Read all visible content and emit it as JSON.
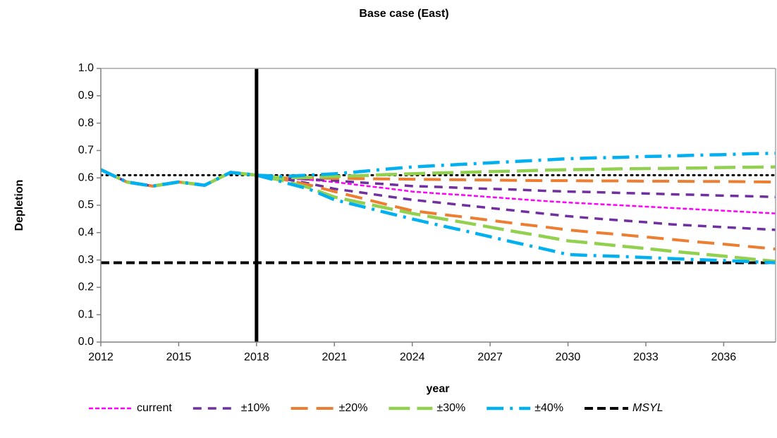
{
  "chart_data": {
    "type": "line",
    "title": "Base case (East)",
    "x_label": "year",
    "y_label": "Depletion",
    "x": [
      2012,
      2013,
      2014,
      2015,
      2016,
      2017,
      2018,
      2019,
      2020,
      2021,
      2022,
      2023,
      2024,
      2025,
      2026,
      2027,
      2028,
      2029,
      2030,
      2031,
      2032,
      2033,
      2034,
      2035,
      2036,
      2037,
      2038
    ],
    "xlim": [
      2012,
      2038
    ],
    "xticks": [
      2012,
      2015,
      2018,
      2021,
      2024,
      2027,
      2030,
      2033,
      2036
    ],
    "ylim": [
      0,
      1
    ],
    "yticks": [
      {
        "value": 0,
        "label": "0.0"
      },
      0.1,
      0.2,
      0.3,
      0.4,
      0.5,
      0.6,
      0.7,
      0.8,
      0.9,
      {
        "value": 1,
        "label": "1.0"
      }
    ],
    "grid": false,
    "legend": "bottom",
    "series": [
      {
        "name": "current",
        "color": "#ff00ff",
        "dash": "6,3",
        "width": 2.5,
        "values": [
          0.63,
          0.585,
          0.57,
          0.585,
          0.573,
          0.62,
          0.61,
          0.6,
          0.593,
          0.585,
          0.573,
          0.562,
          0.55,
          0.543,
          0.537,
          0.53,
          0.523,
          0.516,
          0.51,
          0.505,
          0.5,
          0.495,
          0.49,
          0.485,
          0.48,
          0.475,
          0.47
        ]
      },
      {
        "name": "±10%",
        "color": "#7030a0",
        "dash": "12,9",
        "width": 3.5,
        "values": [
          0.63,
          0.585,
          0.57,
          0.585,
          0.573,
          0.62,
          0.61,
          0.6,
          0.595,
          0.59,
          0.583,
          0.577,
          0.57,
          0.567,
          0.563,
          0.56,
          0.557,
          0.553,
          0.55,
          0.548,
          0.545,
          0.543,
          0.54,
          0.538,
          0.535,
          0.533,
          0.53
        ],
        "values_lower": [
          0.63,
          0.585,
          0.57,
          0.585,
          0.573,
          0.62,
          0.61,
          0.597,
          0.58,
          0.56,
          0.547,
          0.533,
          0.52,
          0.51,
          0.5,
          0.49,
          0.48,
          0.47,
          0.46,
          0.452,
          0.445,
          0.438,
          0.43,
          0.425,
          0.42,
          0.415,
          0.41
        ]
      },
      {
        "name": "±20%",
        "color": "#ed7d31",
        "dash": "24,12",
        "width": 4,
        "values": [
          0.63,
          0.585,
          0.57,
          0.585,
          0.573,
          0.62,
          0.61,
          0.6,
          0.6,
          0.598,
          0.597,
          0.596,
          0.595,
          0.594,
          0.593,
          0.592,
          0.591,
          0.59,
          0.59,
          0.589,
          0.589,
          0.588,
          0.588,
          0.587,
          0.587,
          0.586,
          0.585
        ],
        "values_lower": [
          0.63,
          0.585,
          0.57,
          0.585,
          0.573,
          0.62,
          0.61,
          0.595,
          0.575,
          0.55,
          0.527,
          0.503,
          0.48,
          0.468,
          0.457,
          0.445,
          0.433,
          0.422,
          0.41,
          0.401,
          0.393,
          0.384,
          0.375,
          0.366,
          0.358,
          0.349,
          0.34
        ]
      },
      {
        "name": "±30%",
        "color": "#92d050",
        "dash": "30,10",
        "width": 4.5,
        "values": [
          0.63,
          0.585,
          0.57,
          0.585,
          0.573,
          0.62,
          0.61,
          0.6,
          0.602,
          0.605,
          0.608,
          0.612,
          0.615,
          0.618,
          0.62,
          0.623,
          0.625,
          0.628,
          0.63,
          0.631,
          0.633,
          0.634,
          0.635,
          0.636,
          0.638,
          0.639,
          0.64
        ],
        "values_lower": [
          0.63,
          0.585,
          0.57,
          0.585,
          0.573,
          0.62,
          0.61,
          0.59,
          0.565,
          0.53,
          0.51,
          0.49,
          0.47,
          0.453,
          0.437,
          0.42,
          0.403,
          0.387,
          0.37,
          0.361,
          0.351,
          0.342,
          0.332,
          0.323,
          0.314,
          0.304,
          0.295
        ]
      },
      {
        "name": "±40%",
        "color": "#00b0f0",
        "dash": "24,9,4,9",
        "width": 4.5,
        "values": [
          0.63,
          0.585,
          0.57,
          0.585,
          0.573,
          0.62,
          0.61,
          0.605,
          0.61,
          0.615,
          0.623,
          0.632,
          0.64,
          0.645,
          0.65,
          0.655,
          0.66,
          0.665,
          0.67,
          0.673,
          0.675,
          0.678,
          0.68,
          0.683,
          0.685,
          0.688,
          0.69
        ],
        "values_lower": [
          0.63,
          0.585,
          0.57,
          0.585,
          0.573,
          0.62,
          0.61,
          0.585,
          0.56,
          0.52,
          0.497,
          0.473,
          0.45,
          0.428,
          0.407,
          0.385,
          0.363,
          0.342,
          0.32,
          0.316,
          0.313,
          0.309,
          0.305,
          0.301,
          0.298,
          0.294,
          0.29
        ]
      }
    ],
    "hlines": [
      {
        "value": 0.61,
        "color": "#000000",
        "dash": "2,6",
        "width": 3
      },
      {
        "name": "MSYL",
        "value": 0.29,
        "color": "#000000",
        "dash": "12,6",
        "width": 4
      }
    ],
    "vline": 2018
  }
}
